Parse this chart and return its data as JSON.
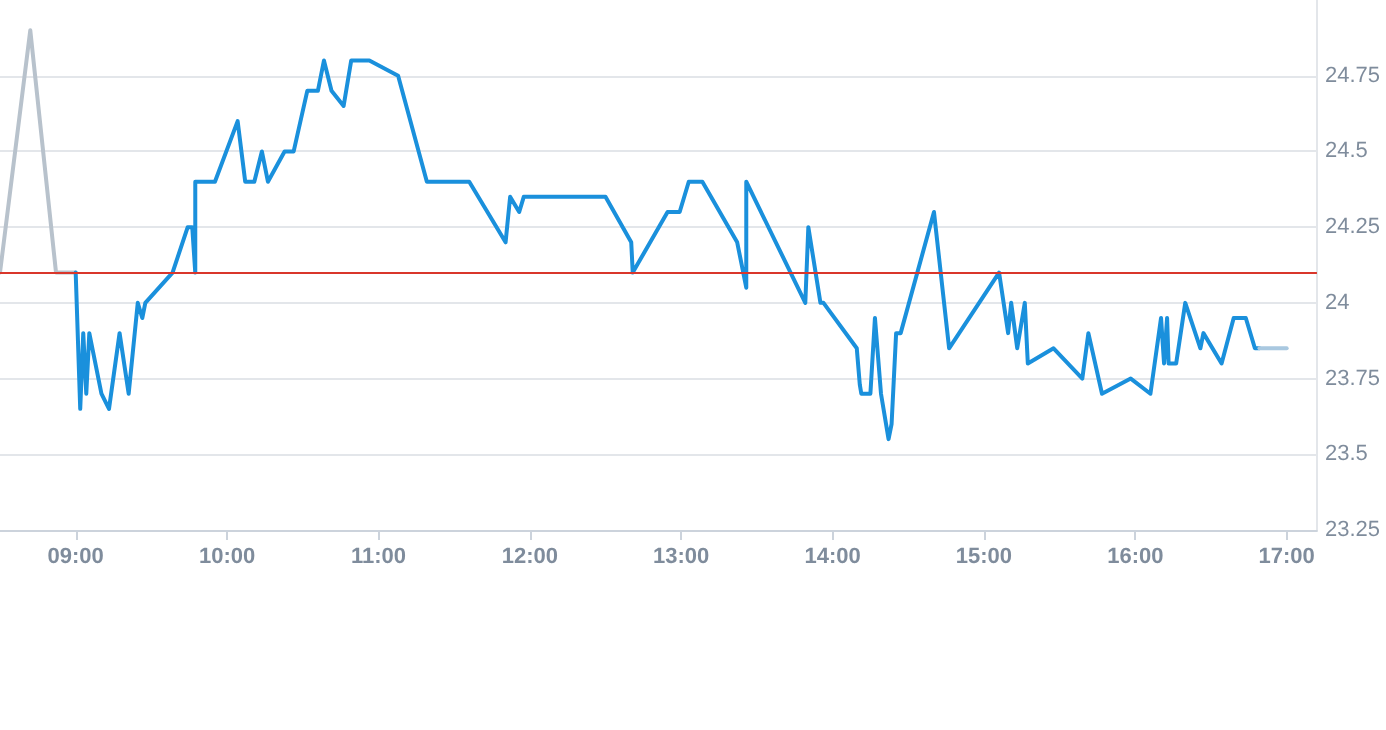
{
  "chart_data": {
    "type": "line",
    "marker": "none",
    "grid": "y",
    "xlim": [
      8.5,
      17.2
    ],
    "xticks": [
      {
        "value": 9,
        "label": "09:00"
      },
      {
        "value": 10,
        "label": "10:00"
      },
      {
        "value": 11,
        "label": "11:00"
      },
      {
        "value": 12,
        "label": "12:00"
      },
      {
        "value": 13,
        "label": "13:00"
      },
      {
        "value": 14,
        "label": "14:00"
      },
      {
        "value": 15,
        "label": "15:00"
      },
      {
        "value": 16,
        "label": "16:00"
      },
      {
        "value": 17,
        "label": "17:00"
      }
    ],
    "ylim": [
      23.25,
      25.0
    ],
    "yticks": [
      23.25,
      23.5,
      23.75,
      24,
      24.25,
      24.5,
      24.75
    ],
    "ref_lines": [
      {
        "axis": "y",
        "value": 24.1,
        "color": "#d9362b"
      }
    ],
    "series": [
      {
        "color": "#b8c2cc",
        "x": [
          8.5,
          8.7,
          8.87,
          9.0
        ],
        "values": [
          24.1,
          24.9,
          24.1,
          24.1
        ]
      },
      {
        "color": "#1a90dc",
        "x": [
          9.0,
          9.03,
          9.05,
          9.07,
          9.09,
          9.17,
          9.22,
          9.29,
          9.35,
          9.41,
          9.44,
          9.46,
          9.64,
          9.74,
          9.77,
          9.79,
          9.79,
          9.92,
          10.07,
          10.12,
          10.18,
          10.23,
          10.27,
          10.38,
          10.44,
          10.53,
          10.6,
          10.64,
          10.69,
          10.77,
          10.82,
          10.94,
          11.13,
          11.32,
          11.6,
          11.84,
          11.87,
          11.93,
          11.96,
          12.5,
          12.67,
          12.68,
          12.91,
          12.99,
          13.05,
          13.14,
          13.37,
          13.43,
          13.43,
          13.82,
          13.84,
          13.92,
          13.94,
          14.16,
          14.18,
          14.19,
          14.25,
          14.28,
          14.32,
          14.37,
          14.39,
          14.42,
          14.45,
          14.67,
          14.77,
          15.1,
          15.16,
          15.18,
          15.22,
          15.27,
          15.29,
          15.46,
          15.65,
          15.69,
          15.78,
          15.97,
          16.1,
          16.17,
          16.19,
          16.21,
          16.22,
          16.27,
          16.33,
          16.43,
          16.45,
          16.57,
          16.65,
          16.73,
          16.79,
          16.82
        ],
        "values": [
          24.1,
          23.65,
          23.9,
          23.7,
          23.9,
          23.7,
          23.65,
          23.9,
          23.7,
          24.0,
          23.95,
          24.0,
          24.1,
          24.25,
          24.25,
          24.1,
          24.4,
          24.4,
          24.6,
          24.4,
          24.4,
          24.5,
          24.4,
          24.5,
          24.5,
          24.7,
          24.7,
          24.8,
          24.7,
          24.65,
          24.8,
          24.8,
          24.75,
          24.4,
          24.4,
          24.2,
          24.35,
          24.3,
          24.35,
          24.35,
          24.2,
          24.1,
          24.3,
          24.3,
          24.4,
          24.4,
          24.2,
          24.05,
          24.4,
          24.0,
          24.25,
          24.0,
          24.0,
          23.85,
          23.73,
          23.7,
          23.7,
          23.95,
          23.7,
          23.55,
          23.6,
          23.9,
          23.9,
          24.3,
          23.85,
          24.1,
          23.9,
          24.0,
          23.85,
          24.0,
          23.8,
          23.85,
          23.75,
          23.9,
          23.7,
          23.75,
          23.7,
          23.95,
          23.8,
          23.95,
          23.8,
          23.8,
          24.0,
          23.85,
          23.9,
          23.8,
          23.95,
          23.95,
          23.85,
          23.85
        ]
      },
      {
        "color": "#a9c8e0",
        "x": [
          16.82,
          17.0
        ],
        "values": [
          23.85,
          23.85
        ]
      }
    ]
  }
}
